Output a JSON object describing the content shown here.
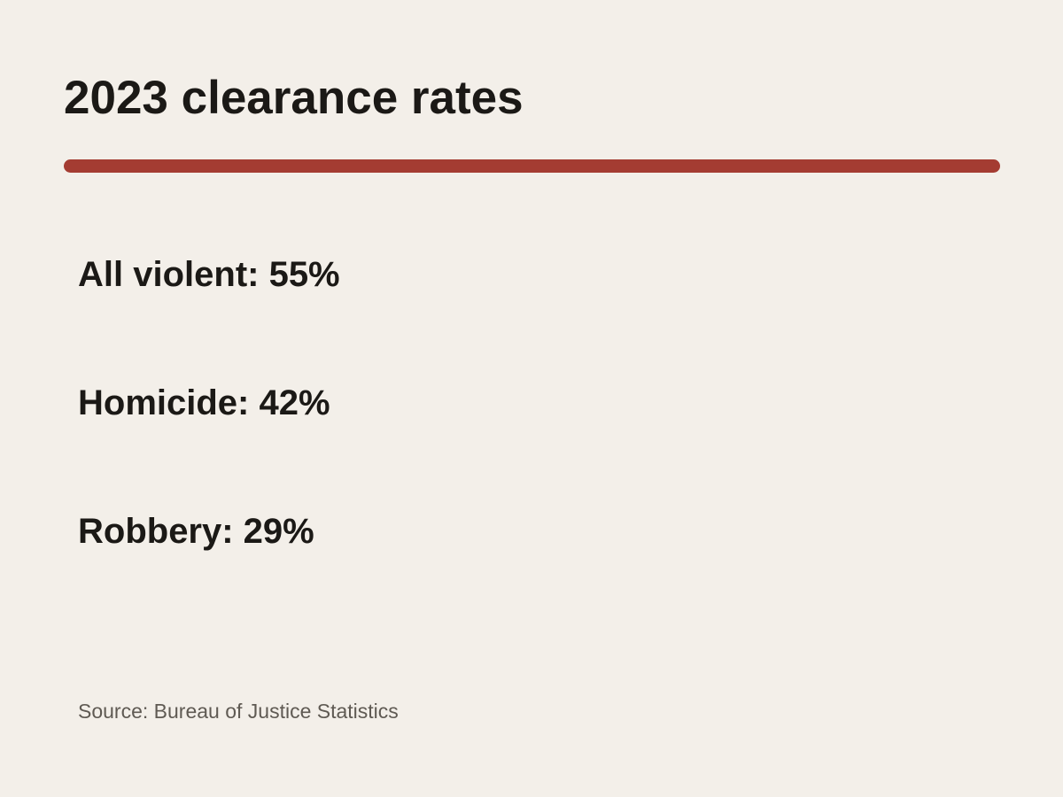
{
  "title": "2023 clearance rates",
  "stats": [
    {
      "text": "All violent: 55%"
    },
    {
      "text": "Homicide: 42%"
    },
    {
      "text": "Robbery: 29%"
    }
  ],
  "source": "Source: Bureau of Justice Statistics",
  "colors": {
    "background": "#f3efe9",
    "accent_rule": "#a43c32",
    "text": "#1b1916",
    "source_text": "#5f5a53"
  }
}
